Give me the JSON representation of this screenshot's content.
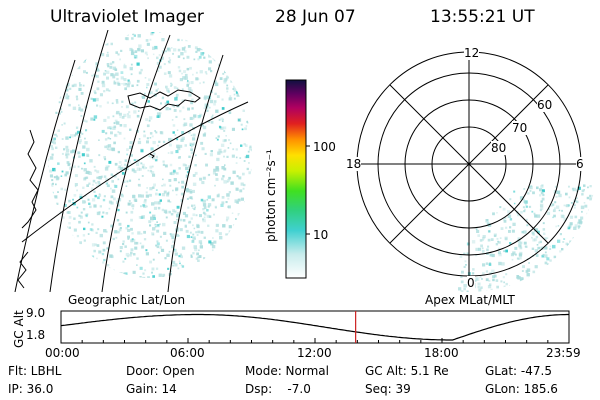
{
  "header": {
    "title": "Ultraviolet Imager",
    "date": "28 Jun 07",
    "time": "13:55:21 UT"
  },
  "colorbar": {
    "unit_label": "photon cm⁻²s⁻¹",
    "ticks": [
      "100",
      "10"
    ]
  },
  "polar": {
    "mlt_labels": {
      "top": "12",
      "left": "18",
      "right": "6",
      "bottom": "0"
    },
    "lat_labels": [
      "60",
      "70",
      "80"
    ]
  },
  "panels": {
    "left_caption": "Geographic Lat/Lon",
    "right_caption": "Apex MLat/MLT"
  },
  "timeline": {
    "ylabel": "GC Alt",
    "yticks": [
      "9.0",
      "1.8"
    ],
    "xticks": [
      "00:00",
      "06:00",
      "12:00",
      "18:00",
      "23:59"
    ],
    "current_time_hours": 13.92
  },
  "info": {
    "flt": "Flt: LBHL",
    "door": "Door: Open",
    "mode": "Mode: Normal",
    "gc_alt": "GC Alt: 5.1 Re",
    "glat": "GLat: -47.5",
    "ip": "IP: 36.0",
    "gain": "Gain: 14",
    "dsp": "Dsp:    -7.0",
    "seq": "Seq: 39",
    "glon": "GLon: 185.6"
  },
  "colors": {
    "speckle": "#a8dcdc",
    "speckle_bright": "#30c8c8",
    "marker": "#cc2020"
  }
}
